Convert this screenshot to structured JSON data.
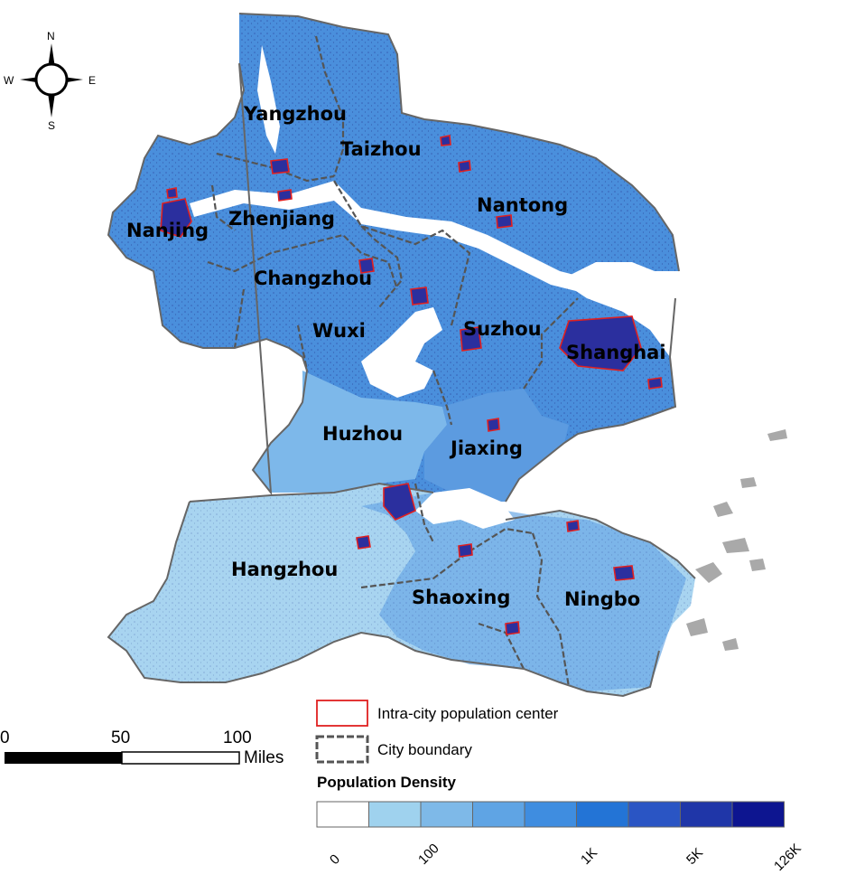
{
  "compass": {
    "n": "N",
    "s": "S",
    "e": "E",
    "w": "W"
  },
  "cities": [
    {
      "name": "Yangzhou"
    },
    {
      "name": "Taizhou"
    },
    {
      "name": "Nantong"
    },
    {
      "name": "Nanjing"
    },
    {
      "name": "Zhenjiang"
    },
    {
      "name": "Changzhou"
    },
    {
      "name": "Wuxi"
    },
    {
      "name": "Suzhou"
    },
    {
      "name": "Shanghai"
    },
    {
      "name": "Huzhou"
    },
    {
      "name": "Jiaxing"
    },
    {
      "name": "Hangzhou"
    },
    {
      "name": "Shaoxing"
    },
    {
      "name": "Ningbo"
    }
  ],
  "scale_bar": {
    "ticks": [
      "0",
      "50",
      "100"
    ],
    "unit": "Miles"
  },
  "legend": {
    "center_label": "Intra-city population center",
    "boundary_label": "City boundary",
    "density_title": "Population Density",
    "density_colors": [
      "#ffffff",
      "#9fd2ee",
      "#7eb9e8",
      "#5fa4e4",
      "#3f8de0",
      "#2374d6",
      "#2a55c4",
      "#1f36a8",
      "#0d1590"
    ],
    "density_ticks": [
      "0",
      "100",
      "1K",
      "5K",
      "126K"
    ]
  }
}
